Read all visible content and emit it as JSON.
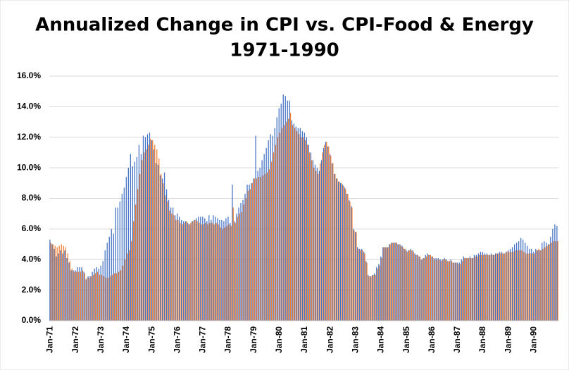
{
  "chart_data": {
    "type": "bar",
    "title": "Annualized Change in CPI vs. CPI-Food & Energy",
    "subtitle": "1971-1990",
    "categories": [
      "Jan-71",
      null,
      null,
      null,
      null,
      null,
      null,
      null,
      null,
      null,
      null,
      null,
      "Jan-72",
      null,
      null,
      null,
      null,
      null,
      null,
      null,
      null,
      null,
      null,
      null,
      "Jan-73",
      null,
      null,
      null,
      null,
      null,
      null,
      null,
      null,
      null,
      null,
      null,
      "Jan-74",
      null,
      null,
      null,
      null,
      null,
      null,
      null,
      null,
      null,
      null,
      null,
      "Jan-75",
      null,
      null,
      null,
      null,
      null,
      null,
      null,
      null,
      null,
      null,
      null,
      "Jan-76",
      null,
      null,
      null,
      null,
      null,
      null,
      null,
      null,
      null,
      null,
      null,
      "Jan-77",
      null,
      null,
      null,
      null,
      null,
      null,
      null,
      null,
      null,
      null,
      null,
      "Jan-78",
      null,
      null,
      null,
      null,
      null,
      null,
      null,
      null,
      null,
      null,
      null,
      "Jan-79",
      null,
      null,
      null,
      null,
      null,
      null,
      null,
      null,
      null,
      null,
      null,
      "Jan-80",
      null,
      null,
      null,
      null,
      null,
      null,
      null,
      null,
      null,
      null,
      null,
      "Jan-81",
      null,
      null,
      null,
      null,
      null,
      null,
      null,
      null,
      null,
      null,
      null,
      "Jan-82",
      null,
      null,
      null,
      null,
      null,
      null,
      null,
      null,
      null,
      null,
      null,
      "Jan-83",
      null,
      null,
      null,
      null,
      null,
      null,
      null,
      null,
      null,
      null,
      null,
      "Jan-84",
      null,
      null,
      null,
      null,
      null,
      null,
      null,
      null,
      null,
      null,
      null,
      "Jan-85",
      null,
      null,
      null,
      null,
      null,
      null,
      null,
      null,
      null,
      null,
      null,
      "Jan-86",
      null,
      null,
      null,
      null,
      null,
      null,
      null,
      null,
      null,
      null,
      null,
      "Jan-87",
      null,
      null,
      null,
      null,
      null,
      null,
      null,
      null,
      null,
      null,
      null,
      "Jan-88",
      null,
      null,
      null,
      null,
      null,
      null,
      null,
      null,
      null,
      null,
      null,
      "Jan-89",
      null,
      null,
      null,
      null,
      null,
      null,
      null,
      null,
      null,
      null,
      null,
      "Jan-90",
      null,
      null,
      null,
      null,
      null,
      null,
      null,
      null,
      null,
      null,
      null
    ],
    "series": [
      {
        "color": "#4472c4",
        "values": [
          5.3,
          5.0,
          4.7,
          4.2,
          4.4,
          4.6,
          4.4,
          4.6,
          4.1,
          3.8,
          3.3,
          3.3,
          3.3,
          3.5,
          3.5,
          3.5,
          3.2,
          2.7,
          2.9,
          2.9,
          3.2,
          3.4,
          3.5,
          3.4,
          3.6,
          3.9,
          4.6,
          5.1,
          5.5,
          6.0,
          5.7,
          7.4,
          7.4,
          7.8,
          8.3,
          8.7,
          9.4,
          10.0,
          10.9,
          10.1,
          10.4,
          10.7,
          11.5,
          10.9,
          12.1,
          12.0,
          12.2,
          12.3,
          11.8,
          11.2,
          10.3,
          10.2,
          9.5,
          9.3,
          9.7,
          8.6,
          7.9,
          7.4,
          7.4,
          6.9,
          7.0,
          6.8,
          6.6,
          6.5,
          6.5,
          6.4,
          6.3,
          6.5,
          6.6,
          6.7,
          6.8,
          6.8,
          6.8,
          6.7,
          6.5,
          6.9,
          6.6,
          6.9,
          6.8,
          6.7,
          6.6,
          6.6,
          6.5,
          6.7,
          6.8,
          6.4,
          8.9,
          6.5,
          7.0,
          7.4,
          7.7,
          7.9,
          8.3,
          8.9,
          8.9,
          9.0,
          9.3,
          12.1,
          9.8,
          10.0,
          10.5,
          10.9,
          11.3,
          11.8,
          12.2,
          12.1,
          12.6,
          13.3,
          13.9,
          14.2,
          14.8,
          14.7,
          14.4,
          14.4,
          13.1,
          12.9,
          12.7,
          12.6,
          12.6,
          12.4,
          12.3,
          12.0,
          11.5,
          11.0,
          10.5,
          10.2,
          10.0,
          9.8,
          10.5,
          11.3,
          11.7,
          11.4,
          10.9,
          10.3,
          9.6,
          9.3,
          9.1,
          9.0,
          8.9,
          8.7,
          8.3,
          7.9,
          7.5,
          6.0,
          5.8,
          4.8,
          4.7,
          4.7,
          4.5,
          3.9,
          3.0,
          2.9,
          3.0,
          3.1,
          3.5,
          3.7,
          4.2,
          4.8,
          4.8,
          4.8,
          5.0,
          5.1,
          5.1,
          5.1,
          5.0,
          5.0,
          4.9,
          4.7,
          4.6,
          4.6,
          4.7,
          4.6,
          4.4,
          4.3,
          4.2,
          4.0,
          4.1,
          4.3,
          4.4,
          4.3,
          4.2,
          4.1,
          4.1,
          4.1,
          4.0,
          4.0,
          4.1,
          4.0,
          3.9,
          4.0,
          3.8,
          3.8,
          3.8,
          3.8,
          4.0,
          4.2,
          4.1,
          4.1,
          4.2,
          4.1,
          4.3,
          4.3,
          4.4,
          4.5,
          4.5,
          4.4,
          4.4,
          4.3,
          4.4,
          4.3,
          4.4,
          4.4,
          4.5,
          4.5,
          4.4,
          4.5,
          4.6,
          4.7,
          4.8,
          5.0,
          5.1,
          5.2,
          5.4,
          5.3,
          5.1,
          4.9,
          4.7,
          4.7,
          4.5,
          4.7,
          4.6,
          4.6,
          5.1,
          5.2,
          5.1,
          5.0,
          5.5,
          6.0,
          6.3,
          6.2
        ]
      },
      {
        "color": "#ed7d31",
        "values": [
          5.1,
          5.0,
          4.9,
          4.8,
          4.9,
          5.0,
          4.9,
          4.8,
          4.4,
          3.9,
          3.4,
          3.2,
          3.2,
          3.2,
          3.2,
          3.3,
          3.1,
          2.8,
          2.8,
          2.9,
          3.0,
          3.1,
          3.2,
          3.0,
          3.0,
          2.9,
          2.8,
          2.8,
          2.9,
          3.0,
          3.1,
          3.1,
          3.2,
          3.3,
          3.6,
          4.0,
          4.4,
          4.6,
          5.2,
          6.5,
          7.6,
          8.6,
          9.6,
          10.5,
          11.0,
          11.2,
          11.5,
          11.9,
          11.8,
          11.5,
          11.2,
          10.6,
          9.6,
          9.0,
          8.2,
          7.8,
          7.2,
          7.0,
          6.9,
          6.6,
          6.6,
          6.4,
          6.3,
          6.4,
          6.5,
          6.3,
          6.4,
          6.5,
          6.6,
          6.5,
          6.4,
          6.3,
          6.3,
          6.4,
          6.3,
          6.4,
          6.4,
          6.3,
          6.4,
          6.3,
          6.1,
          6.0,
          6.1,
          6.2,
          6.3,
          6.2,
          7.4,
          6.4,
          6.8,
          7.0,
          7.1,
          7.6,
          8.0,
          8.5,
          8.6,
          9.0,
          9.3,
          9.3,
          9.4,
          9.4,
          9.5,
          9.6,
          9.7,
          9.9,
          10.4,
          11.0,
          11.5,
          12.0,
          12.3,
          12.6,
          12.8,
          13.0,
          13.2,
          13.6,
          12.8,
          12.6,
          12.4,
          12.2,
          12.0,
          12.0,
          11.8,
          11.5,
          11.0,
          10.5,
          10.0,
          9.8,
          9.6,
          10.3,
          11.0,
          11.5,
          11.7,
          11.4,
          10.8,
          10.3,
          9.6,
          9.3,
          9.1,
          9.0,
          8.8,
          8.6,
          8.3,
          7.8,
          7.4,
          5.9,
          5.8,
          4.7,
          4.6,
          4.6,
          4.4,
          3.8,
          2.9,
          2.9,
          3.0,
          3.0,
          3.4,
          3.6,
          4.1,
          4.8,
          4.8,
          4.8,
          5.0,
          5.1,
          5.1,
          5.1,
          5.0,
          4.9,
          4.8,
          4.7,
          4.5,
          4.6,
          4.6,
          4.5,
          4.3,
          4.3,
          4.2,
          4.0,
          4.1,
          4.2,
          4.3,
          4.3,
          4.2,
          4.0,
          4.0,
          4.0,
          3.9,
          4.0,
          4.0,
          3.9,
          3.9,
          3.9,
          3.8,
          3.8,
          3.7,
          3.7,
          3.9,
          4.1,
          4.1,
          4.1,
          4.1,
          4.1,
          4.2,
          4.2,
          4.3,
          4.3,
          4.3,
          4.3,
          4.3,
          4.3,
          4.3,
          4.3,
          4.4,
          4.4,
          4.4,
          4.4,
          4.4,
          4.5,
          4.5,
          4.5,
          4.5,
          4.6,
          4.6,
          4.6,
          4.6,
          4.5,
          4.4,
          4.4,
          4.4,
          4.4,
          4.4,
          4.6,
          4.7,
          4.6,
          4.7,
          4.8,
          4.9,
          5.0,
          5.1,
          5.2,
          5.2,
          5.2
        ]
      }
    ],
    "ylim": [
      0,
      16
    ],
    "yticks": [
      {
        "value": 0,
        "label": "0.0%"
      },
      {
        "value": 2,
        "label": "2.0%"
      },
      {
        "value": 4,
        "label": "4.0%"
      },
      {
        "value": 6,
        "label": "6.0%"
      },
      {
        "value": 8,
        "label": "8.0%"
      },
      {
        "value": 10,
        "label": "10.0%"
      },
      {
        "value": 12,
        "label": "12.0%"
      },
      {
        "value": 14,
        "label": "14.0%"
      },
      {
        "value": 16,
        "label": "16.0%"
      }
    ],
    "grid": true
  }
}
